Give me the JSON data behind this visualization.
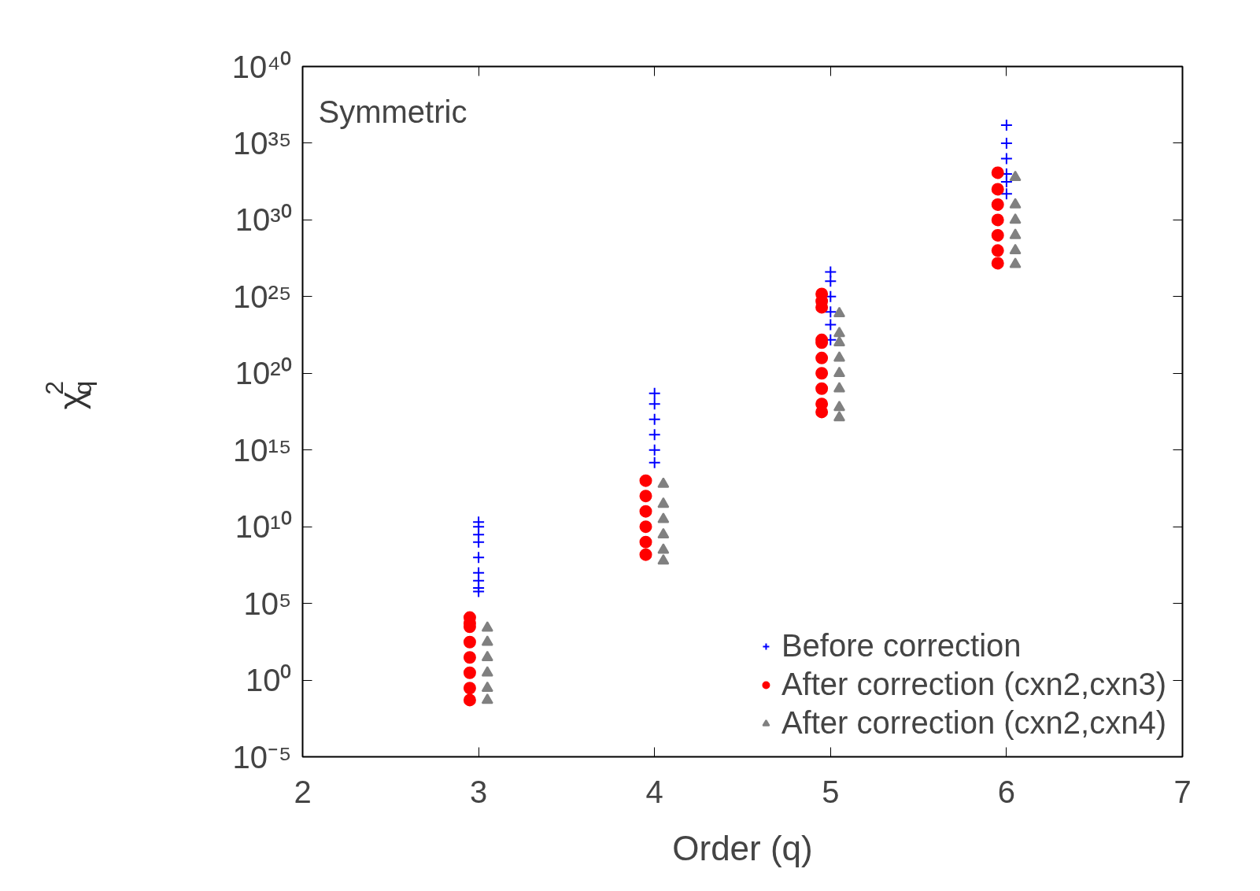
{
  "chart_data": {
    "type": "scatter",
    "xlabel": "Order (q)",
    "ylabel": "χ$_{q}$$^{2}$",
    "log": "y",
    "grid": false,
    "legend": "bottom right",
    "annotations": [
      "Symmetric"
    ],
    "xlim": [
      2,
      7
    ],
    "xticks": [
      2,
      3,
      4,
      5,
      6,
      7
    ],
    "ylim": [
      1e-05,
      1e+40
    ],
    "yticks": [
      {
        "value": 1e-05,
        "label": "10⁻⁵"
      },
      {
        "value": 1,
        "label": "10⁰"
      },
      {
        "value": 100000.0,
        "label": "10⁵"
      },
      {
        "value": 10000000000.0,
        "label": "10¹⁰"
      },
      {
        "value": 1000000000000000.0,
        "label": "10¹⁵"
      },
      {
        "value": 1e+20,
        "label": "10²⁰"
      },
      {
        "value": 1e+25,
        "label": "10²⁵"
      },
      {
        "value": 1e+30,
        "label": "10³⁰"
      },
      {
        "value": 1e+35,
        "label": "10³⁵"
      },
      {
        "value": 1e+40,
        "label": "10⁴⁰"
      }
    ],
    "series": [
      {
        "name": "Before correction",
        "color": "#0000ff",
        "marker": "cross",
        "x": [
          3,
          3,
          3,
          3,
          3,
          3,
          3,
          3,
          3,
          4,
          4,
          4,
          4,
          4,
          4,
          5,
          5,
          5,
          5,
          5,
          5,
          6,
          6,
          6,
          6,
          6,
          6
        ],
        "values": [
          600000.0,
          1000000.0,
          3000000.0,
          10000000.0,
          100000000.0,
          1000000000.0,
          3000000000.0,
          10000000000.0,
          20000000000.0,
          150000000000000.0,
          1000000000000000.0,
          1e+16,
          1e+17,
          1e+18,
          5e+18,
          1.5e+22,
          1.5e+23,
          1e+24,
          1e+25,
          1e+26,
          4e+26,
          5e+31,
          3e+32,
          1e+33,
          1e+34,
          1e+35,
          1.5e+36
        ]
      },
      {
        "name": "After correction (cxn2,cxn3)",
        "color": "#ff0000",
        "marker": "circle",
        "x": [
          2.95,
          2.95,
          2.95,
          2.95,
          2.95,
          2.95,
          2.95,
          2.95,
          3.95,
          3.95,
          3.95,
          3.95,
          3.95,
          3.95,
          4.95,
          4.95,
          4.95,
          4.95,
          4.95,
          4.95,
          4.95,
          4.95,
          4.95,
          4.95,
          5.95,
          5.95,
          5.95,
          5.95,
          5.95,
          5.95,
          5.95
        ],
        "values": [
          0.05,
          0.3,
          3,
          30,
          300,
          3000,
          5000,
          12000,
          150000000.0,
          1000000000.0,
          10000000000.0,
          100000000000.0,
          1000000000000.0,
          10000000000000.0,
          3e+17,
          1e+18,
          1e+19,
          1e+20,
          1e+21,
          1e+22,
          1.5e+22,
          2e+24,
          5e+24,
          1.5e+25,
          1.5e+27,
          1e+28,
          1e+29,
          1e+30,
          1e+31,
          1e+32,
          1.2e+33
        ]
      },
      {
        "name": "After correction (cxn2,cxn4)",
        "color": "#808080",
        "marker": "triangle",
        "x": [
          3.05,
          3.05,
          3.05,
          3.05,
          3.05,
          3.05,
          4.05,
          4.05,
          4.05,
          4.05,
          4.05,
          4.05,
          5.05,
          5.05,
          5.05,
          5.05,
          5.05,
          5.05,
          5.05,
          5.05,
          6.05,
          6.05,
          6.05,
          6.05,
          6.05,
          6.05
        ],
        "values": [
          0.05,
          0.3,
          3,
          30,
          300,
          2500,
          60000000.0,
          300000000.0,
          3000000000.0,
          30000000000.0,
          300000000000.0,
          6000000000000.0,
          1.3e+17,
          6e+17,
          1e+19,
          1e+20,
          1e+21,
          1e+22,
          4e+22,
          8e+23,
          1.3e+27,
          1e+28,
          1e+29,
          1e+30,
          1e+31,
          6e+32
        ]
      }
    ]
  }
}
